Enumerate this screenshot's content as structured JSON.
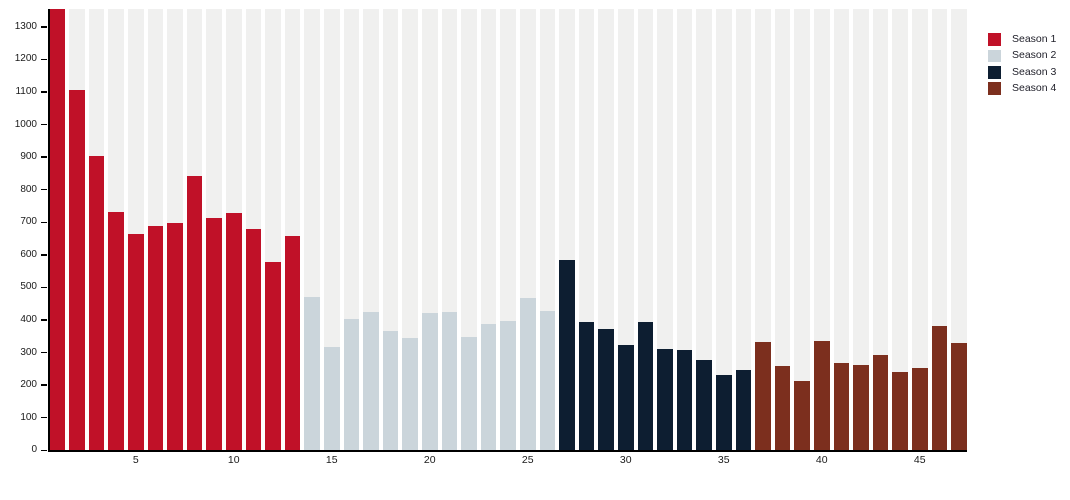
{
  "chart_data": {
    "type": "bar",
    "title": "",
    "xlabel": "",
    "ylabel": "",
    "ylim": [
      0,
      1355
    ],
    "y_ticks": [
      0,
      100,
      200,
      300,
      400,
      500,
      600,
      700,
      800,
      900,
      1000,
      1100,
      1200,
      1300
    ],
    "x_ticks": [
      5,
      10,
      15,
      20,
      25,
      30,
      35,
      40,
      45
    ],
    "x_range": [
      1,
      47
    ],
    "grid": "vertical background stripes per bar slot",
    "legend_position": "top-right outside plot",
    "background_stripe_color": "#f0f0ef",
    "axis_color": "#000000",
    "legend": [
      {
        "label": "Season 1",
        "color": "#c01128"
      },
      {
        "label": "Season 2",
        "color": "#cbd5db"
      },
      {
        "label": "Season 3",
        "color": "#0d1e31"
      },
      {
        "label": "Season 4",
        "color": "#7c2f1e"
      }
    ],
    "series": [
      {
        "name": "Season 1",
        "color": "#c01128",
        "start_episode": 1,
        "values": [
          1355,
          1105,
          905,
          732,
          663,
          688,
          697,
          843,
          712,
          727,
          678,
          579,
          657
        ]
      },
      {
        "name": "Season 2",
        "color": "#cbd5db",
        "start_episode": 14,
        "values": [
          472,
          318,
          402,
          425,
          366,
          346,
          420,
          423,
          349,
          388,
          396,
          467,
          429
        ]
      },
      {
        "name": "Season 3",
        "color": "#0d1e31",
        "start_episode": 27,
        "values": [
          583,
          395,
          372,
          322,
          395,
          312,
          308,
          276,
          230,
          246
        ]
      },
      {
        "name": "Season 4",
        "color": "#7c2f1e",
        "start_episode": 37,
        "values": [
          333,
          258,
          211,
          334,
          268,
          261,
          291,
          239,
          252,
          380,
          328
        ]
      }
    ]
  }
}
